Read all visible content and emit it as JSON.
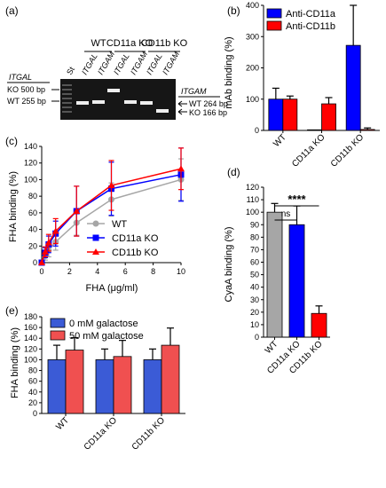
{
  "chart_data": [
    {
      "panel": "(a)",
      "type": "gel",
      "left_header": "ITGAL",
      "left_bands": [
        "KO 500 bp",
        "WT 255 bp"
      ],
      "right_header": "ITGAM",
      "right_bands": [
        "WT 264 bp",
        "KO 166 bp"
      ],
      "groups": [
        "WT",
        "CD11a KO",
        "CD11b KO"
      ],
      "lanes": [
        "St",
        "ITGAL",
        "ITGAM",
        "ITGAL",
        "ITGAM",
        "ITGAL",
        "ITGAM"
      ]
    },
    {
      "panel": "(b)",
      "type": "bar",
      "ylabel": "mAb binding (%)",
      "ylim": [
        0,
        400
      ],
      "yticks": [
        0,
        100,
        200,
        300,
        400
      ],
      "categories": [
        "WT",
        "CD11a KO",
        "CD11b KO"
      ],
      "legend": "top-left",
      "series": [
        {
          "name": "Anti-CD11a",
          "color": "#0000ff",
          "values": [
            100,
            2,
            272
          ],
          "errors": [
            35,
            0,
            128
          ]
        },
        {
          "name": "Anti-CD11b",
          "color": "#ff0000",
          "values": [
            100,
            85,
            3
          ],
          "errors": [
            10,
            20,
            5
          ]
        }
      ]
    },
    {
      "panel": "(c)",
      "type": "line",
      "xlabel": "FHA (μg/ml)",
      "ylabel": "FHA binding (%)",
      "xlim": [
        0,
        10
      ],
      "ylim": [
        0,
        140
      ],
      "xticks": [
        0,
        2,
        4,
        6,
        8,
        10
      ],
      "yticks": [
        0,
        20,
        40,
        60,
        80,
        100,
        120,
        140
      ],
      "x": [
        0,
        0.25,
        0.5,
        1,
        2.5,
        5,
        10
      ],
      "legend": "bottom-right",
      "series": [
        {
          "name": "WT",
          "color": "#a6a6a6",
          "marker": "circle",
          "values": [
            0,
            8,
            15,
            25,
            48,
            76,
            100
          ],
          "errors": [
            0,
            5,
            8,
            10,
            15,
            20,
            25
          ]
        },
        {
          "name": "CD11a KO",
          "color": "#0000ff",
          "marker": "square",
          "values": [
            0,
            12,
            22,
            35,
            62,
            89,
            106
          ],
          "errors": [
            0,
            6,
            10,
            15,
            30,
            32,
            32
          ]
        },
        {
          "name": "CD11b KO",
          "color": "#ff0000",
          "marker": "triangle",
          "values": [
            0,
            13,
            24,
            38,
            62,
            93,
            113
          ],
          "errors": [
            0,
            6,
            10,
            15,
            30,
            30,
            25
          ]
        }
      ]
    },
    {
      "panel": "(d)",
      "type": "bar",
      "ylabel": "CyaA binding (%)",
      "ylim": [
        0,
        120
      ],
      "yticks": [
        0,
        10,
        20,
        30,
        40,
        50,
        60,
        70,
        80,
        90,
        100,
        110,
        120
      ],
      "categories": [
        "WT",
        "CD11a KO",
        "CD11b KO"
      ],
      "colors": [
        "#a6a6a6",
        "#0000ff",
        "#ff0000"
      ],
      "values": [
        100,
        90,
        19
      ],
      "errors": [
        7,
        15,
        6
      ],
      "annotations": [
        "****",
        "ns"
      ]
    },
    {
      "panel": "(e)",
      "type": "bar",
      "ylabel": "FHA binding (%)",
      "ylim": [
        0,
        180
      ],
      "yticks": [
        0,
        20,
        40,
        60,
        80,
        100,
        120,
        140,
        160,
        180
      ],
      "categories": [
        "WT",
        "CD11a KO",
        "CD11b KO"
      ],
      "legend": "top-left",
      "series": [
        {
          "name": "0 mM galactose",
          "color": "#3b5bd6",
          "values": [
            100,
            100,
            100
          ],
          "errors": [
            27,
            20,
            20
          ]
        },
        {
          "name": "50 mM galactose",
          "color": "#f05050",
          "values": [
            118,
            106,
            127
          ],
          "errors": [
            23,
            30,
            32
          ]
        }
      ]
    }
  ]
}
